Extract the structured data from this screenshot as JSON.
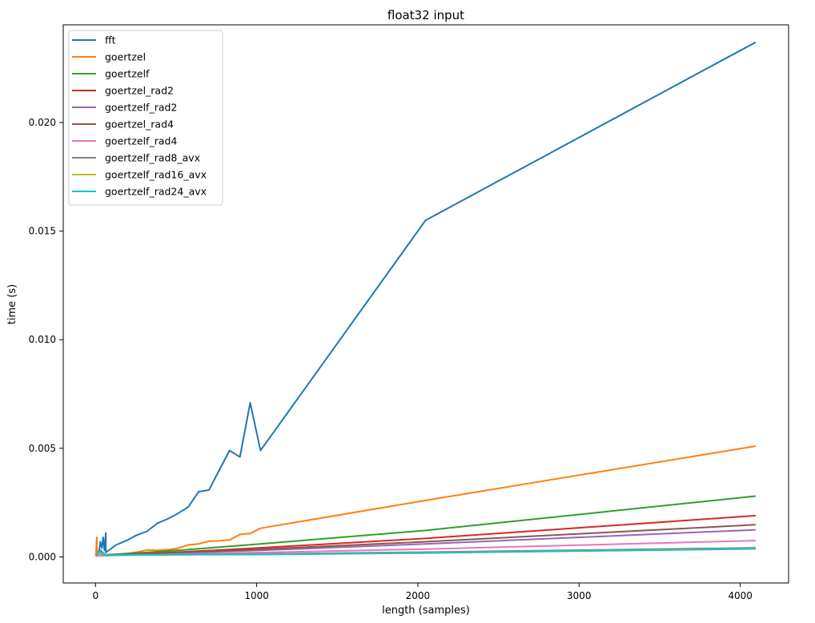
{
  "chart_data": {
    "type": "line",
    "title": "float32 input",
    "xlabel": "length (samples)",
    "ylabel": "time (s)",
    "xlim": [
      -200,
      4300
    ],
    "ylim": [
      -0.0012,
      0.0245
    ],
    "x_ticks": [
      0,
      1000,
      2000,
      3000,
      4000
    ],
    "x_tick_labels": [
      "0",
      "1000",
      "2000",
      "3000",
      "4000"
    ],
    "y_ticks": [
      0.0,
      0.005,
      0.01,
      0.015,
      0.02
    ],
    "y_tick_labels": [
      "0.000",
      "0.005",
      "0.010",
      "0.015",
      "0.020"
    ],
    "grid": false,
    "legend_position": "top-left",
    "series": [
      {
        "name": "fft",
        "color": "#1f77b4",
        "x": [
          2,
          10,
          20,
          30,
          40,
          48,
          56,
          64,
          64,
          128,
          192,
          256,
          320,
          384,
          448,
          512,
          576,
          640,
          704,
          768,
          832,
          896,
          960,
          1024,
          2048,
          4096
        ],
        "y": [
          5e-05,
          0.0003,
          0.0001,
          0.0007,
          0.0004,
          0.0009,
          0.0003,
          0.0011,
          0.0002,
          0.00055,
          0.00075,
          0.001,
          0.00118,
          0.00155,
          0.00175,
          0.002,
          0.0023,
          0.003,
          0.00308,
          0.004,
          0.0049,
          0.0046,
          0.0071,
          0.0049,
          0.0155,
          0.0237
        ]
      },
      {
        "name": "goertzel",
        "color": "#ff7f0e",
        "x": [
          2,
          8,
          10,
          16,
          32,
          64,
          128,
          192,
          256,
          320,
          384,
          448,
          512,
          576,
          640,
          704,
          768,
          832,
          896,
          960,
          1024,
          2048,
          4096
        ],
        "y": [
          5e-05,
          0.0009,
          5e-05,
          0.0001,
          6e-05,
          8e-05,
          0.0001,
          0.00015,
          0.00022,
          0.00032,
          0.0003,
          0.00033,
          0.0004,
          0.00055,
          0.0006,
          0.00072,
          0.00074,
          0.00078,
          0.00103,
          0.00108,
          0.00132,
          0.0026,
          0.0051
        ]
      },
      {
        "name": "goertzelf",
        "color": "#2ca02c",
        "x": [
          2,
          64,
          256,
          512,
          768,
          1024,
          2048,
          4096
        ],
        "y": [
          5e-05,
          0.0001,
          0.00018,
          0.0003,
          0.00045,
          0.0006,
          0.00122,
          0.0028
        ]
      },
      {
        "name": "goertzel_rad2",
        "color": "#d62728",
        "x": [
          2,
          256,
          512,
          1024,
          2048,
          4096
        ],
        "y": [
          5e-05,
          0.00014,
          0.00022,
          0.00042,
          0.00085,
          0.0019
        ]
      },
      {
        "name": "goertzelf_rad2",
        "color": "#9467bd",
        "x": [
          2,
          256,
          512,
          1024,
          2048,
          4096
        ],
        "y": [
          5e-05,
          0.00012,
          0.00018,
          0.0003,
          0.0006,
          0.00125
        ]
      },
      {
        "name": "goertzel_rad4",
        "color": "#8c564b",
        "x": [
          2,
          256,
          512,
          1024,
          2048,
          4096
        ],
        "y": [
          5e-05,
          0.00013,
          0.0002,
          0.00035,
          0.0007,
          0.00148
        ]
      },
      {
        "name": "goertzelf_rad4",
        "color": "#e377c2",
        "x": [
          2,
          256,
          512,
          1024,
          2048,
          4096
        ],
        "y": [
          5e-05,
          9e-05,
          0.00013,
          0.0002,
          0.00036,
          0.00075
        ]
      },
      {
        "name": "goertzelf_rad8_avx",
        "color": "#7f7f7f",
        "x": [
          2,
          32,
          64,
          256,
          512,
          1024,
          2048,
          4096
        ],
        "y": [
          5e-05,
          0.0003,
          8e-05,
          0.0001,
          0.00012,
          0.00014,
          0.00022,
          0.00042
        ]
      },
      {
        "name": "goertzelf_rad16_avx",
        "color": "#bcbd22",
        "x": [
          2,
          32,
          64,
          256,
          512,
          1024,
          2048,
          4096
        ],
        "y": [
          5e-05,
          0.0002,
          7e-05,
          9e-05,
          0.0001,
          0.00012,
          0.00019,
          0.00038
        ]
      },
      {
        "name": "goertzelf_rad24_avx",
        "color": "#17becf",
        "x": [
          2,
          24,
          48,
          64,
          256,
          512,
          1024,
          2048,
          4096
        ],
        "y": [
          5e-05,
          0.00025,
          0.0001,
          8e-05,
          9e-05,
          0.0001,
          0.00011,
          0.00018,
          0.00037
        ]
      }
    ]
  }
}
